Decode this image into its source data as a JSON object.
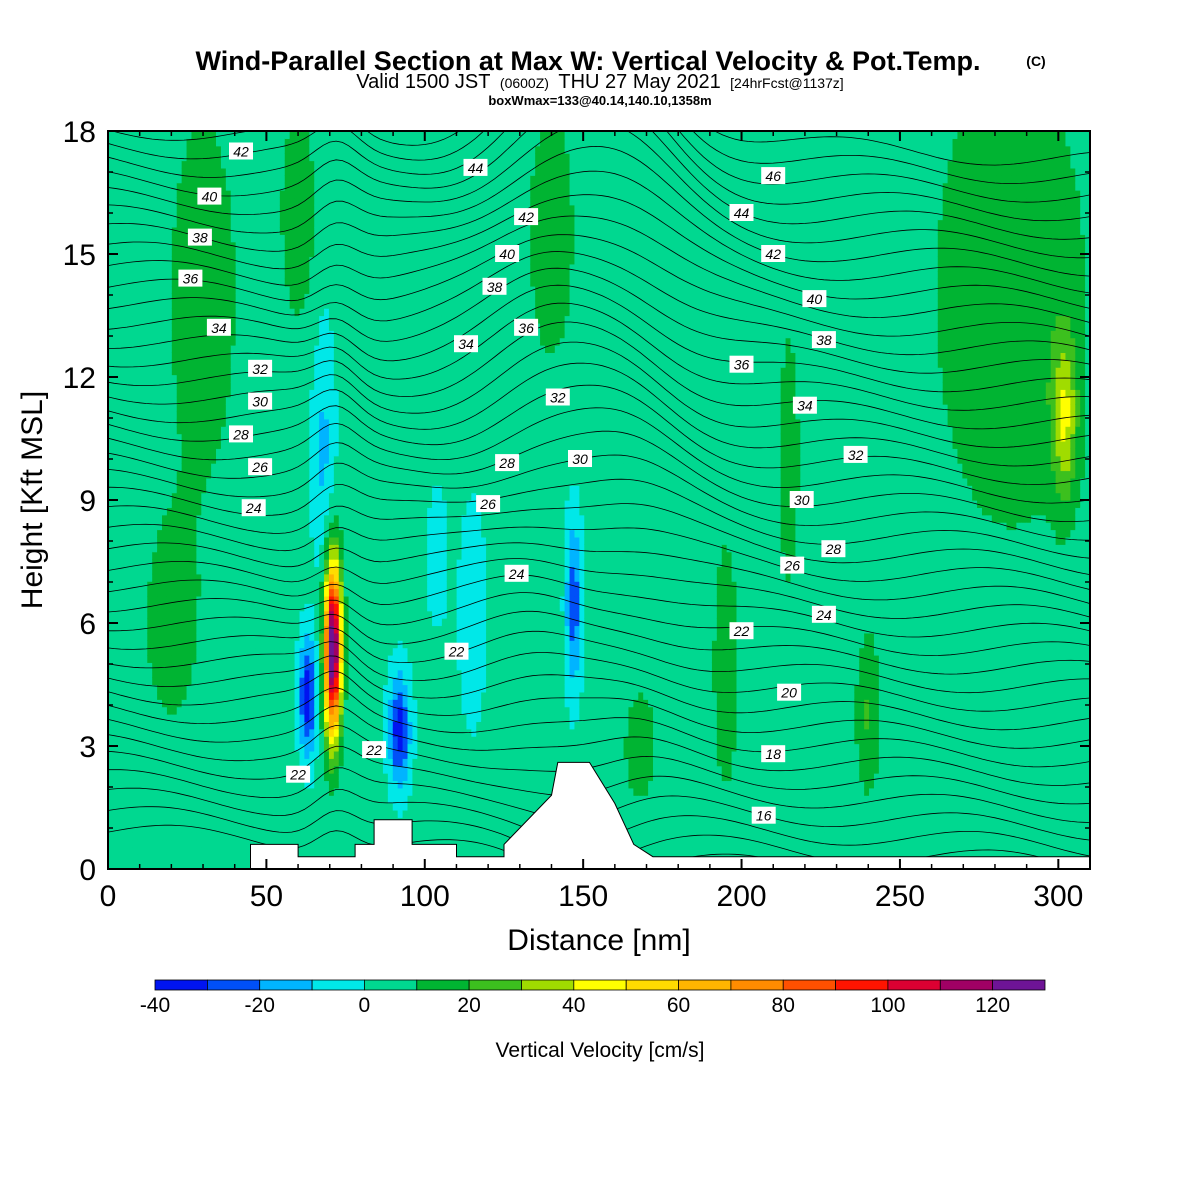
{
  "chart_data": {
    "type": "heatmap",
    "title": "Wind-Parallel Section at Max W: Vertical Velocity & Pot.Temp.",
    "title_suffix": "(C)",
    "subtitle": {
      "valid": "Valid 1500 JST",
      "zulu": "(0600Z)",
      "date": "THU 27 May 2021",
      "fcst": "[24hrFcst@1137z]"
    },
    "box_info": "boxWmax=133@40.14,140.10,1358m",
    "xlabel": "Distance [nm]",
    "ylabel": "Height [Kft MSL]",
    "xlim": [
      0,
      310
    ],
    "ylim": [
      0,
      18
    ],
    "x_ticks": [
      "0",
      "50",
      "100",
      "150",
      "200",
      "250",
      "300"
    ],
    "y_ticks": [
      "0",
      "3",
      "6",
      "9",
      "12",
      "15",
      "18"
    ],
    "x_tick_values": [
      0,
      50,
      100,
      150,
      200,
      250,
      300
    ],
    "y_tick_values": [
      0,
      3,
      6,
      9,
      12,
      15,
      18
    ],
    "colorbar": {
      "label": "Vertical Velocity [cm/s]",
      "levels": [
        -40,
        -30,
        -20,
        -10,
        0,
        10,
        20,
        30,
        40,
        50,
        60,
        70,
        80,
        90,
        100,
        110,
        120,
        130
      ],
      "colors": [
        "#0014f0",
        "#0050f8",
        "#00b4ff",
        "#00e8e8",
        "#00d890",
        "#00b432",
        "#3cc01e",
        "#a0dc00",
        "#ffff00",
        "#ffdc00",
        "#ffb400",
        "#ff8c00",
        "#ff5000",
        "#ff1400",
        "#dc0032",
        "#a00064",
        "#6e1496"
      ],
      "tick_labels": [
        "-40",
        "-20",
        "0",
        "20",
        "40",
        "60",
        "80",
        "100",
        "120"
      ],
      "tick_values": [
        -40,
        -20,
        0,
        20,
        40,
        60,
        80,
        100,
        120
      ]
    },
    "terrain": [
      [
        0,
        0
      ],
      [
        45,
        0
      ],
      [
        45,
        0.6
      ],
      [
        60,
        0.6
      ],
      [
        60,
        0.3
      ],
      [
        78,
        0.3
      ],
      [
        78,
        0.6
      ],
      [
        84,
        0.6
      ],
      [
        84,
        1.2
      ],
      [
        96,
        1.2
      ],
      [
        96,
        0.6
      ],
      [
        110,
        0.6
      ],
      [
        110,
        0.3
      ],
      [
        125,
        0.3
      ],
      [
        125,
        0.6
      ],
      [
        140,
        1.8
      ],
      [
        142,
        2.6
      ],
      [
        152,
        2.6
      ],
      [
        160,
        1.6
      ],
      [
        166,
        0.6
      ],
      [
        172,
        0.3
      ],
      [
        310,
        0.3
      ],
      [
        310,
        0
      ]
    ],
    "velocity_features": [
      {
        "x": 71,
        "y": 5.4,
        "sx": 2.6,
        "sy": 2.1,
        "w": 133
      },
      {
        "x": 63,
        "y": 4.2,
        "sx": 2.6,
        "sy": 1.4,
        "w": -40
      },
      {
        "x": 92,
        "y": 3.4,
        "sx": 3.2,
        "sy": 1.3,
        "w": -40
      },
      {
        "x": 147,
        "y": 6.5,
        "sx": 2.4,
        "sy": 2.0,
        "w": -30
      },
      {
        "x": 68,
        "y": 10.2,
        "sx": 3.5,
        "sy": 3.0,
        "w": -15
      },
      {
        "x": 104,
        "y": 7.6,
        "sx": 3.0,
        "sy": 1.5,
        "w": -12
      },
      {
        "x": 115,
        "y": 6.2,
        "sx": 4.0,
        "sy": 2.5,
        "w": -12
      },
      {
        "x": 30,
        "y": 14,
        "sx": 12,
        "sy": 5,
        "w": 14
      },
      {
        "x": 60,
        "y": 16,
        "sx": 6,
        "sy": 3,
        "w": 14
      },
      {
        "x": 140,
        "y": 15.5,
        "sx": 8,
        "sy": 3.5,
        "w": 14
      },
      {
        "x": 168,
        "y": 3.0,
        "sx": 5,
        "sy": 1.4,
        "w": 16
      },
      {
        "x": 195,
        "y": 5,
        "sx": 5,
        "sy": 4,
        "w": 12
      },
      {
        "x": 240,
        "y": 3.8,
        "sx": 4,
        "sy": 2,
        "w": 18
      },
      {
        "x": 215,
        "y": 10,
        "sx": 4,
        "sy": 4,
        "w": 12
      },
      {
        "x": 285,
        "y": 14,
        "sx": 25,
        "sy": 6,
        "w": 17
      },
      {
        "x": 302,
        "y": 11,
        "sx": 4,
        "sy": 2,
        "w": 32
      },
      {
        "x": 20,
        "y": 6,
        "sx": 10,
        "sy": 3,
        "w": 12
      }
    ],
    "theta_labels": [
      {
        "text": "42",
        "x": 42,
        "y": 17.5
      },
      {
        "text": "40",
        "x": 32,
        "y": 16.4
      },
      {
        "text": "38",
        "x": 29,
        "y": 15.4
      },
      {
        "text": "36",
        "x": 26,
        "y": 14.4
      },
      {
        "text": "34",
        "x": 35,
        "y": 13.2
      },
      {
        "text": "32",
        "x": 48,
        "y": 12.2
      },
      {
        "text": "30",
        "x": 48,
        "y": 11.4
      },
      {
        "text": "28",
        "x": 42,
        "y": 10.6
      },
      {
        "text": "26",
        "x": 48,
        "y": 9.8
      },
      {
        "text": "24",
        "x": 46,
        "y": 8.8
      },
      {
        "text": "22",
        "x": 60,
        "y": 2.3
      },
      {
        "text": "22",
        "x": 84,
        "y": 2.9
      },
      {
        "text": "22",
        "x": 110,
        "y": 5.3
      },
      {
        "text": "44",
        "x": 116,
        "y": 17.1
      },
      {
        "text": "42",
        "x": 132,
        "y": 15.9
      },
      {
        "text": "40",
        "x": 126,
        "y": 15.0
      },
      {
        "text": "38",
        "x": 122,
        "y": 14.2
      },
      {
        "text": "36",
        "x": 132,
        "y": 13.2
      },
      {
        "text": "34",
        "x": 113,
        "y": 12.8
      },
      {
        "text": "32",
        "x": 142,
        "y": 11.5
      },
      {
        "text": "30",
        "x": 149,
        "y": 10.0
      },
      {
        "text": "28",
        "x": 126,
        "y": 9.9
      },
      {
        "text": "26",
        "x": 120,
        "y": 8.9
      },
      {
        "text": "24",
        "x": 129,
        "y": 7.2
      },
      {
        "text": "46",
        "x": 210,
        "y": 16.9
      },
      {
        "text": "44",
        "x": 200,
        "y": 16.0
      },
      {
        "text": "42",
        "x": 210,
        "y": 15.0
      },
      {
        "text": "40",
        "x": 223,
        "y": 13.9
      },
      {
        "text": "38",
        "x": 226,
        "y": 12.9
      },
      {
        "text": "36",
        "x": 200,
        "y": 12.3
      },
      {
        "text": "34",
        "x": 220,
        "y": 11.3
      },
      {
        "text": "32",
        "x": 236,
        "y": 10.1
      },
      {
        "text": "30",
        "x": 219,
        "y": 9.0
      },
      {
        "text": "28",
        "x": 229,
        "y": 7.8
      },
      {
        "text": "26",
        "x": 216,
        "y": 7.4
      },
      {
        "text": "24",
        "x": 226,
        "y": 6.2
      },
      {
        "text": "22",
        "x": 200,
        "y": 5.8
      },
      {
        "text": "20",
        "x": 215,
        "y": 4.3
      },
      {
        "text": "18",
        "x": 210,
        "y": 2.8
      },
      {
        "text": "16",
        "x": 207,
        "y": 1.3
      }
    ]
  }
}
